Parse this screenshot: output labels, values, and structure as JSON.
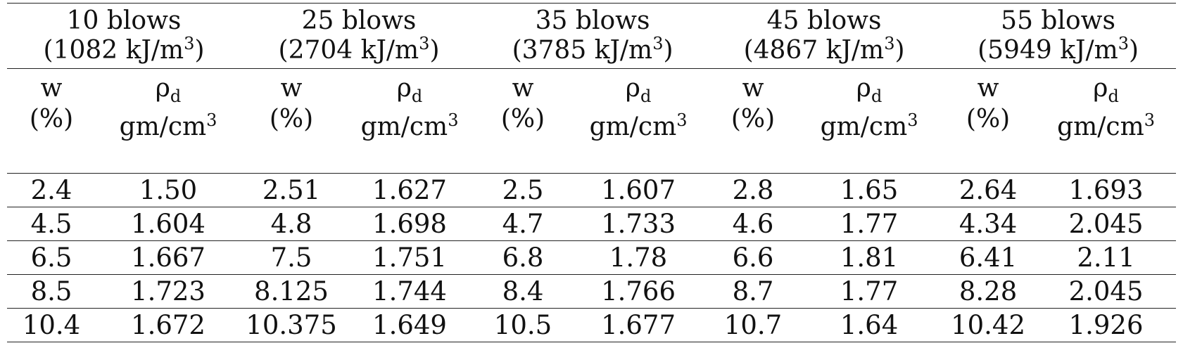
{
  "groups": [
    {
      "title": "10 blows",
      "energy_value": "(1082 kJ/m",
      "energy_sup": "3",
      "energy_close": ")"
    },
    {
      "title": "25 blows",
      "energy_value": "(2704 kJ/m",
      "energy_sup": "3",
      "energy_close": ")"
    },
    {
      "title": "35 blows",
      "energy_value": "(3785 kJ/m",
      "energy_sup": "3",
      "energy_close": ")"
    },
    {
      "title": "45 blows",
      "energy_value": "(4867 kJ/m",
      "energy_sup": "3",
      "energy_close": ")"
    },
    {
      "title": "55 blows",
      "energy_value": "(5949 kJ/m",
      "energy_sup": "3",
      "energy_close": ")"
    }
  ],
  "subheaders": {
    "w_symbol": "w",
    "w_unit": "(%)",
    "rho_symbol": "ρ",
    "rho_subscript": "d",
    "rho_unit": "gm/cm",
    "rho_unit_sup": "3"
  },
  "rows": [
    [
      "2.4",
      "1.50",
      "2.51",
      "1.627",
      "2.5",
      "1.607",
      "2.8",
      "1.65",
      "2.64",
      "1.693"
    ],
    [
      "4.5",
      "1.604",
      "4.8",
      "1.698",
      "4.7",
      "1.733",
      "4.6",
      "1.77",
      "4.34",
      "2.045"
    ],
    [
      "6.5",
      "1.667",
      "7.5",
      "1.751",
      "6.8",
      "1.78",
      "6.6",
      "1.81",
      "6.41",
      "2.11"
    ],
    [
      "8.5",
      "1.723",
      "8.125",
      "1.744",
      "8.4",
      "1.766",
      "8.7",
      "1.77",
      "8.28",
      "2.045"
    ],
    [
      "10.4",
      "1.672",
      "10.375",
      "1.649",
      "10.5",
      "1.677",
      "10.7",
      "1.64",
      "10.42",
      "1.926"
    ]
  ]
}
